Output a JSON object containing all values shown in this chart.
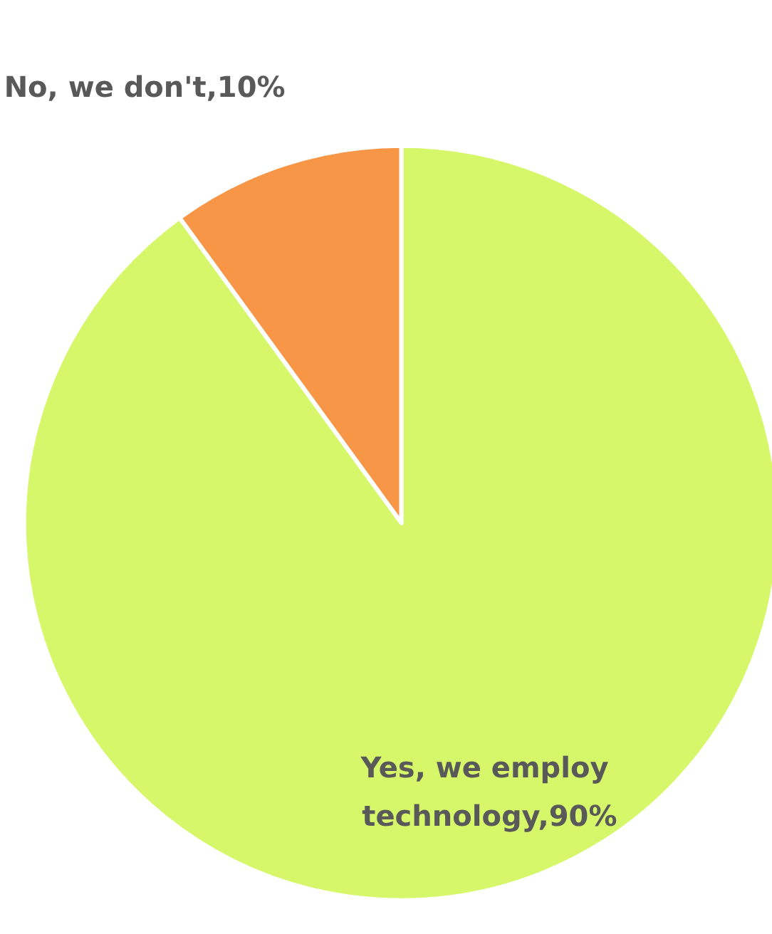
{
  "chart_data": {
    "type": "pie",
    "categories": [
      "No, we don't,10%",
      "Yes, we employ technology,90%"
    ],
    "values": [
      10,
      90
    ],
    "colors": [
      "#f79646",
      "#d7f76b"
    ],
    "legend": false
  }
}
